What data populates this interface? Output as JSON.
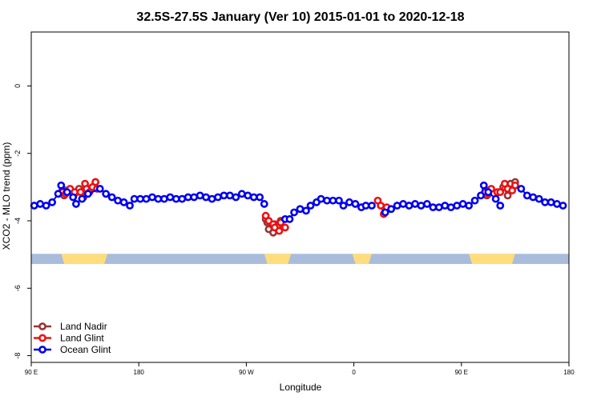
{
  "chart_data": {
    "type": "scatter",
    "title": "32.5S-27.5S January (Ver 10)   2015-01-01 to 2020-12-18",
    "xlabel": "Longitude",
    "ylabel": "XCO2 - MLO trend (ppm)",
    "xlim": [
      90,
      450
    ],
    "ylim": [
      -8.2,
      1.6
    ],
    "x_ticks": [
      {
        "value": 90,
        "label": "90 E"
      },
      {
        "value": 162,
        "label": "180"
      },
      {
        "value": 234,
        "label": "90 W"
      },
      {
        "value": 306,
        "label": "0"
      },
      {
        "value": 378,
        "label": "90 E"
      },
      {
        "value": 450,
        "label": "180"
      }
    ],
    "y_ticks": [
      0,
      -2,
      -4,
      -6,
      -8
    ],
    "legend_position": "bottom-left",
    "land_ocean_band": {
      "y_range": [
        -5.28,
        -4.98
      ],
      "ocean_color": "#a9bcdb",
      "land_color": "#ffdd7d",
      "land_spans": [
        [
          110,
          141
        ],
        [
          246,
          264
        ],
        [
          305,
          318
        ],
        [
          383,
          414
        ]
      ]
    },
    "series": [
      {
        "name": "Land Nadir",
        "color": "#993333",
        "points": [
          [
            112,
            -3.25
          ],
          [
            113,
            -3.1
          ],
          [
            119,
            -3.2
          ],
          [
            122,
            -3.05
          ],
          [
            125,
            -3.3
          ],
          [
            127,
            -3.15
          ],
          [
            129,
            -3.05
          ],
          [
            131,
            -3.0
          ],
          [
            133,
            -2.85
          ],
          [
            247,
            -3.95
          ],
          [
            248,
            -4.05
          ],
          [
            249,
            -4.25
          ],
          [
            252,
            -4.35
          ],
          [
            253,
            -4.1
          ],
          [
            255,
            -4.2
          ],
          [
            257,
            -4.0
          ],
          [
            395,
            -3.25
          ],
          [
            396,
            -3.1
          ],
          [
            403,
            -3.15
          ],
          [
            406,
            -3.0
          ],
          [
            409,
            -3.25
          ],
          [
            411,
            -2.9
          ],
          [
            414,
            -2.85
          ]
        ]
      },
      {
        "name": "Land Glint",
        "color": "#ee1111",
        "points": [
          [
            111,
            -3.15
          ],
          [
            113,
            -3.2
          ],
          [
            116,
            -3.05
          ],
          [
            119,
            -3.15
          ],
          [
            123,
            -3.15
          ],
          [
            126,
            -2.9
          ],
          [
            127,
            -3.05
          ],
          [
            129,
            -3.15
          ],
          [
            131,
            -3.0
          ],
          [
            133,
            -2.85
          ],
          [
            134,
            -3.05
          ],
          [
            247,
            -3.85
          ],
          [
            249,
            -4.0
          ],
          [
            252,
            -4.1
          ],
          [
            253,
            -4.2
          ],
          [
            256,
            -4.3
          ],
          [
            257,
            -4.05
          ],
          [
            260,
            -4.2
          ],
          [
            322,
            -3.4
          ],
          [
            324,
            -3.55
          ],
          [
            326,
            -3.8
          ],
          [
            328,
            -3.6
          ],
          [
            394,
            -3.15
          ],
          [
            396,
            -3.2
          ],
          [
            398,
            -3.05
          ],
          [
            402,
            -3.15
          ],
          [
            404,
            -3.15
          ],
          [
            407,
            -2.9
          ],
          [
            409,
            -3.05
          ],
          [
            412,
            -3.1
          ],
          [
            414,
            -2.95
          ]
        ]
      },
      {
        "name": "Ocean Glint",
        "color": "#0000ee",
        "points": [
          [
            92,
            -3.55
          ],
          [
            96,
            -3.5
          ],
          [
            100,
            -3.55
          ],
          [
            104,
            -3.45
          ],
          [
            108,
            -3.2
          ],
          [
            110,
            -2.95
          ],
          [
            114,
            -3.15
          ],
          [
            118,
            -3.3
          ],
          [
            120,
            -3.5
          ],
          [
            124,
            -3.35
          ],
          [
            128,
            -3.2
          ],
          [
            136,
            -3.05
          ],
          [
            140,
            -3.2
          ],
          [
            144,
            -3.3
          ],
          [
            148,
            -3.4
          ],
          [
            152,
            -3.45
          ],
          [
            156,
            -3.55
          ],
          [
            159,
            -3.35
          ],
          [
            163,
            -3.35
          ],
          [
            167,
            -3.35
          ],
          [
            171,
            -3.3
          ],
          [
            175,
            -3.35
          ],
          [
            179,
            -3.35
          ],
          [
            183,
            -3.3
          ],
          [
            187,
            -3.35
          ],
          [
            191,
            -3.35
          ],
          [
            195,
            -3.3
          ],
          [
            199,
            -3.3
          ],
          [
            203,
            -3.25
          ],
          [
            207,
            -3.3
          ],
          [
            211,
            -3.35
          ],
          [
            215,
            -3.3
          ],
          [
            219,
            -3.25
          ],
          [
            223,
            -3.25
          ],
          [
            227,
            -3.3
          ],
          [
            231,
            -3.2
          ],
          [
            235,
            -3.25
          ],
          [
            239,
            -3.3
          ],
          [
            243,
            -3.3
          ],
          [
            246,
            -3.5
          ],
          [
            260,
            -3.95
          ],
          [
            263,
            -3.95
          ],
          [
            266,
            -3.75
          ],
          [
            270,
            -3.65
          ],
          [
            274,
            -3.7
          ],
          [
            277,
            -3.55
          ],
          [
            281,
            -3.45
          ],
          [
            284,
            -3.35
          ],
          [
            288,
            -3.4
          ],
          [
            292,
            -3.4
          ],
          [
            296,
            -3.4
          ],
          [
            299,
            -3.55
          ],
          [
            303,
            -3.45
          ],
          [
            307,
            -3.5
          ],
          [
            311,
            -3.6
          ],
          [
            314,
            -3.55
          ],
          [
            318,
            -3.55
          ],
          [
            327,
            -3.75
          ],
          [
            331,
            -3.65
          ],
          [
            335,
            -3.55
          ],
          [
            339,
            -3.5
          ],
          [
            343,
            -3.55
          ],
          [
            347,
            -3.5
          ],
          [
            351,
            -3.55
          ],
          [
            355,
            -3.5
          ],
          [
            359,
            -3.6
          ],
          [
            363,
            -3.6
          ],
          [
            367,
            -3.55
          ],
          [
            371,
            -3.6
          ],
          [
            375,
            -3.55
          ],
          [
            379,
            -3.5
          ],
          [
            383,
            -3.55
          ],
          [
            387,
            -3.4
          ],
          [
            391,
            -3.25
          ],
          [
            393,
            -2.95
          ],
          [
            396,
            -3.15
          ],
          [
            401,
            -3.35
          ],
          [
            404,
            -3.55
          ],
          [
            418,
            -3.05
          ],
          [
            422,
            -3.25
          ],
          [
            426,
            -3.3
          ],
          [
            430,
            -3.35
          ],
          [
            434,
            -3.45
          ],
          [
            438,
            -3.45
          ],
          [
            442,
            -3.5
          ],
          [
            446,
            -3.55
          ]
        ]
      }
    ]
  }
}
